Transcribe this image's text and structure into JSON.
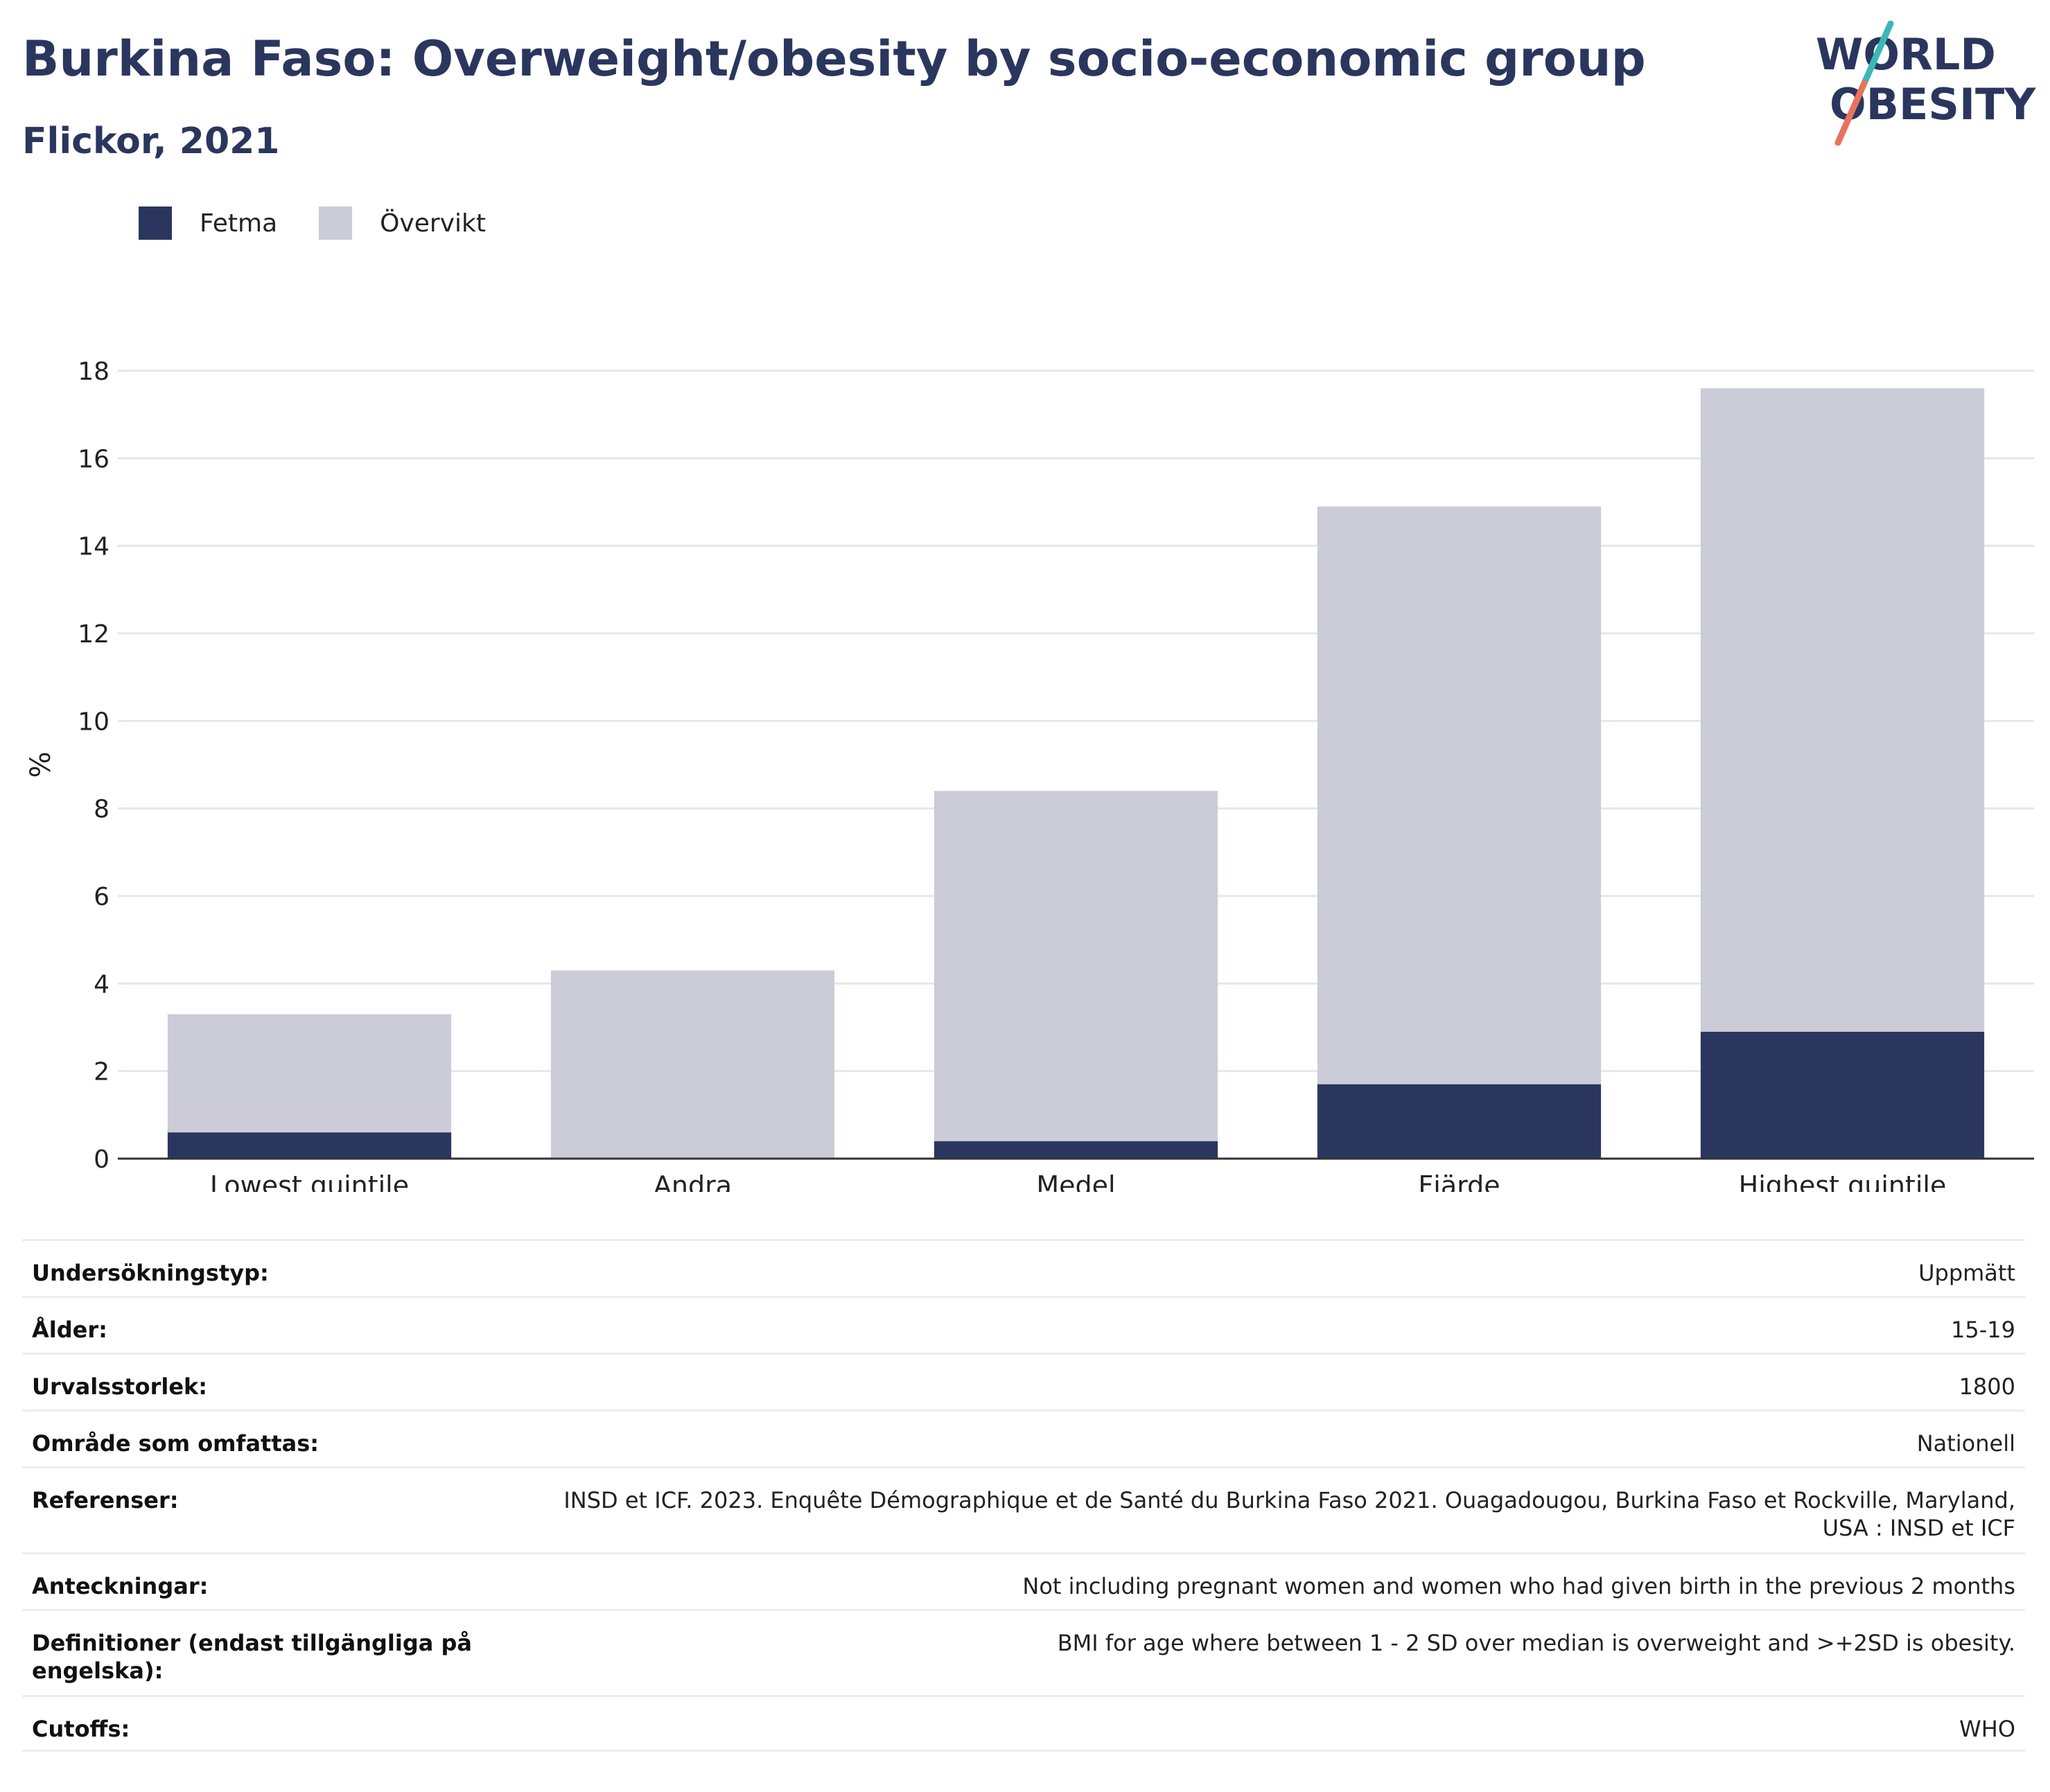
{
  "header": {
    "title": "Burkina Faso: Overweight/obesity by socio-economic group",
    "subtitle": "Flickor, 2021"
  },
  "logo": {
    "line1": "WORLD",
    "line2": "OBESITY",
    "text_color": "#2b365f",
    "accent_teal": "#3bb8b6",
    "accent_coral": "#e8725c"
  },
  "legend": [
    {
      "label": "Fetma",
      "color": "#2b365f"
    },
    {
      "label": "Övervikt",
      "color": "#cbccd8"
    }
  ],
  "chart_data": {
    "type": "bar",
    "stacked": true,
    "categories": [
      "Lowest quintile",
      "Andra",
      "Medel",
      "Fjärde",
      "Highest quintile"
    ],
    "series": [
      {
        "name": "Fetma",
        "color": "#2b365f",
        "values": [
          0.6,
          0.0,
          0.4,
          1.7,
          2.9
        ]
      },
      {
        "name": "Övervikt",
        "color": "#cbccd8",
        "values": [
          2.7,
          4.3,
          8.0,
          13.2,
          14.7
        ]
      }
    ],
    "ylabel": "%",
    "ylim": [
      0,
      18
    ],
    "yticks": [
      0,
      2,
      4,
      6,
      8,
      10,
      12,
      14,
      16,
      18
    ],
    "grid": true
  },
  "info": [
    {
      "label": "Undersökningstyp:",
      "value": "Uppmätt"
    },
    {
      "label": "Ålder:",
      "value": "15-19"
    },
    {
      "label": "Urvalsstorlek:",
      "value": "1800"
    },
    {
      "label": "Område som omfattas:",
      "value": "Nationell"
    },
    {
      "label": "Referenser:",
      "value": "INSD et ICF. 2023. Enquête Démographique et de Santé du Burkina Faso 2021. Ouagadougou, Burkina Faso et Rockville, Maryland, USA : INSD et ICF"
    },
    {
      "label": "Anteckningar:",
      "value": "Not including pregnant women and women who had given birth in the previous 2 months"
    },
    {
      "label": "Definitioner (endast tillgängliga på engelska):",
      "value": "BMI for age where between 1 - 2 SD over median is overweight and >+2SD is obesity."
    },
    {
      "label": "Cutoffs:",
      "value": "WHO"
    }
  ]
}
